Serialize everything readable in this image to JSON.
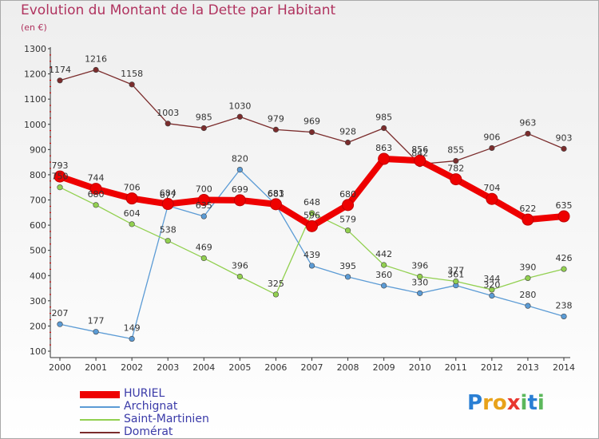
{
  "header": {
    "title": "Evolution du Montant de la Dette par Habitant",
    "subtitle": "(en €)"
  },
  "chart_data": {
    "type": "line",
    "title": "Evolution du Montant de la Dette par Habitant",
    "subtitle": "(en €)",
    "xlabel": "",
    "ylabel": "",
    "x": [
      2000,
      2001,
      2002,
      2003,
      2004,
      2005,
      2006,
      2007,
      2008,
      2009,
      2010,
      2011,
      2012,
      2013,
      2014
    ],
    "ylim": [
      100,
      1300
    ],
    "yticks": [
      100,
      200,
      300,
      400,
      500,
      600,
      700,
      800,
      900,
      1000,
      1100,
      1200,
      1300
    ],
    "grid": false,
    "legend_position": "bottom-left",
    "series": [
      {
        "name": "HURIEL",
        "color": "#ee0000",
        "values": [
          793,
          744,
          706,
          684,
          700,
          699,
          683,
          596,
          680,
          863,
          856,
          782,
          704,
          622,
          635
        ]
      },
      {
        "name": "Archignat",
        "color": "#5b9bd5",
        "values": [
          207,
          177,
          149,
          677,
          635,
          820,
          681,
          439,
          395,
          360,
          330,
          361,
          320,
          280,
          238
        ]
      },
      {
        "name": "Saint-Martinien",
        "color": "#92d050",
        "values": [
          750,
          680,
          604,
          538,
          469,
          396,
          325,
          648,
          579,
          442,
          396,
          377,
          344,
          390,
          426
        ]
      },
      {
        "name": "Domérat",
        "color": "#7b2c2c",
        "values": [
          1174,
          1216,
          1158,
          1003,
          985,
          1030,
          979,
          969,
          928,
          985,
          842,
          855,
          906,
          963,
          903
        ]
      }
    ]
  },
  "logo": {
    "letters": [
      "P",
      "r",
      "o",
      "x",
      "i",
      "t",
      "i"
    ],
    "colors": [
      "#2a7fd4",
      "#e8a21a",
      "#e8a21a",
      "#e8372f",
      "#5cb85c",
      "#2a7fd4",
      "#5cb85c"
    ]
  }
}
